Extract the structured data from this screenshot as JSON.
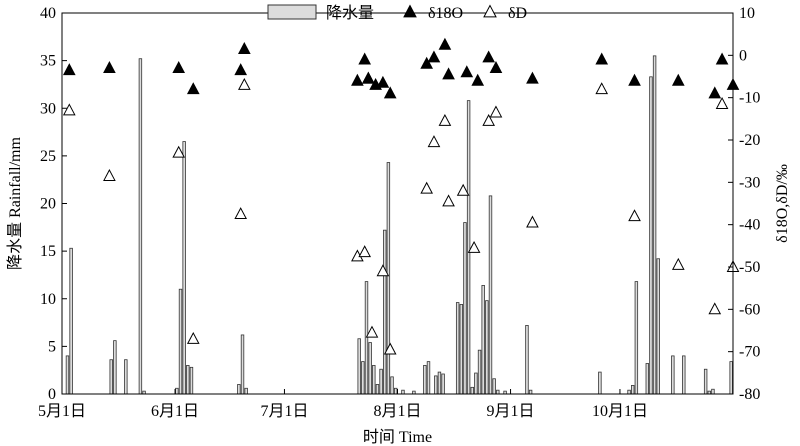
{
  "chart_data": {
    "type": "bar",
    "xlabel": "时间 Time",
    "ylabel_left": "降水量 Rainfall/mm",
    "ylabel_right": "δ18O,δD/‰",
    "left_axis": {
      "ylim": [
        0,
        40
      ],
      "ticks": [
        0,
        5,
        10,
        15,
        20,
        25,
        30,
        35,
        40
      ]
    },
    "right_axis": {
      "ylim": [
        -80,
        10
      ],
      "ticks": [
        -80,
        -70,
        -60,
        -50,
        -40,
        -30,
        -20,
        -10,
        0,
        10
      ]
    },
    "x_axis": {
      "xlim": [
        0,
        184
      ],
      "ticks": [
        {
          "day": 0,
          "label": "5月1日"
        },
        {
          "day": 31,
          "label": "6月1日"
        },
        {
          "day": 61,
          "label": "7月1日"
        },
        {
          "day": 92,
          "label": "8月1日"
        },
        {
          "day": 123,
          "label": "9月1日"
        },
        {
          "day": 153,
          "label": "10月1日"
        }
      ]
    },
    "legend": {
      "position": "top-center",
      "entries": [
        {
          "name": "降水量",
          "marker": "bar"
        },
        {
          "name": "δ18O",
          "marker": "filled-triangle"
        },
        {
          "name": "δD",
          "marker": "open-triangle"
        }
      ]
    },
    "colors": {
      "bar_fill": "#dcdcdc",
      "bar_stroke": "#333333",
      "o18_marker": "#000000",
      "d_marker": "#ffffff"
    },
    "series": [
      {
        "name": "降水量",
        "axis": "left",
        "type": "bar",
        "points": [
          {
            "x": 1,
            "y": 4.0
          },
          {
            "x": 2,
            "y": 15.3
          },
          {
            "x": 13,
            "y": 3.6
          },
          {
            "x": 14,
            "y": 5.6
          },
          {
            "x": 17,
            "y": 3.6
          },
          {
            "x": 21,
            "y": 35.2
          },
          {
            "x": 22,
            "y": 0.3
          },
          {
            "x": 31,
            "y": 0.6
          },
          {
            "x": 32,
            "y": 11.0
          },
          {
            "x": 33,
            "y": 26.5
          },
          {
            "x": 34,
            "y": 3.0
          },
          {
            "x": 35,
            "y": 2.8
          },
          {
            "x": 48,
            "y": 1.0
          },
          {
            "x": 49,
            "y": 6.2
          },
          {
            "x": 50,
            "y": 0.6
          },
          {
            "x": 81,
            "y": 5.8
          },
          {
            "x": 82,
            "y": 3.4
          },
          {
            "x": 83,
            "y": 11.8
          },
          {
            "x": 84,
            "y": 5.4
          },
          {
            "x": 85,
            "y": 3.0
          },
          {
            "x": 86,
            "y": 1.0
          },
          {
            "x": 87,
            "y": 2.6
          },
          {
            "x": 88,
            "y": 17.2
          },
          {
            "x": 89,
            "y": 24.3
          },
          {
            "x": 90,
            "y": 1.8
          },
          {
            "x": 91,
            "y": 0.6
          },
          {
            "x": 93,
            "y": 0.4
          },
          {
            "x": 96,
            "y": 0.3
          },
          {
            "x": 99,
            "y": 3.0
          },
          {
            "x": 100,
            "y": 3.4
          },
          {
            "x": 102,
            "y": 1.9
          },
          {
            "x": 103,
            "y": 2.3
          },
          {
            "x": 104,
            "y": 2.1
          },
          {
            "x": 108,
            "y": 9.6
          },
          {
            "x": 109,
            "y": 9.4
          },
          {
            "x": 110,
            "y": 18.0
          },
          {
            "x": 111,
            "y": 30.8
          },
          {
            "x": 112,
            "y": 0.7
          },
          {
            "x": 113,
            "y": 2.2
          },
          {
            "x": 114,
            "y": 4.6
          },
          {
            "x": 115,
            "y": 11.4
          },
          {
            "x": 116,
            "y": 9.8
          },
          {
            "x": 117,
            "y": 20.8
          },
          {
            "x": 118,
            "y": 1.6
          },
          {
            "x": 119,
            "y": 0.4
          },
          {
            "x": 121,
            "y": 0.3
          },
          {
            "x": 127,
            "y": 7.2
          },
          {
            "x": 128,
            "y": 0.4
          },
          {
            "x": 147,
            "y": 2.3
          },
          {
            "x": 155,
            "y": 0.4
          },
          {
            "x": 156,
            "y": 0.9
          },
          {
            "x": 157,
            "y": 11.8
          },
          {
            "x": 160,
            "y": 3.2
          },
          {
            "x": 161,
            "y": 33.3
          },
          {
            "x": 162,
            "y": 35.5
          },
          {
            "x": 163,
            "y": 14.2
          },
          {
            "x": 167,
            "y": 4.0
          },
          {
            "x": 170,
            "y": 4.0
          },
          {
            "x": 176,
            "y": 2.6
          },
          {
            "x": 177,
            "y": 0.3
          },
          {
            "x": 178,
            "y": 0.5
          },
          {
            "x": 183,
            "y": 3.4
          }
        ]
      },
      {
        "name": "δ18O",
        "axis": "right",
        "type": "scatter",
        "points": [
          {
            "x": 2,
            "y": -3.5
          },
          {
            "x": 13,
            "y": -3.0
          },
          {
            "x": 32,
            "y": -3.0
          },
          {
            "x": 36,
            "y": -8.0
          },
          {
            "x": 49,
            "y": -3.5
          },
          {
            "x": 50,
            "y": 1.5
          },
          {
            "x": 81,
            "y": -6.0
          },
          {
            "x": 83,
            "y": -1.0
          },
          {
            "x": 84,
            "y": -5.5
          },
          {
            "x": 86,
            "y": -7.0
          },
          {
            "x": 88,
            "y": -6.5
          },
          {
            "x": 90,
            "y": -9.0
          },
          {
            "x": 100,
            "y": -2.0
          },
          {
            "x": 102,
            "y": -0.5
          },
          {
            "x": 105,
            "y": 2.5
          },
          {
            "x": 106,
            "y": -4.5
          },
          {
            "x": 111,
            "y": -4.0
          },
          {
            "x": 114,
            "y": -6.0
          },
          {
            "x": 117,
            "y": -0.5
          },
          {
            "x": 119,
            "y": -3.0
          },
          {
            "x": 129,
            "y": -5.5
          },
          {
            "x": 148,
            "y": -1.0
          },
          {
            "x": 157,
            "y": -6.0
          },
          {
            "x": 169,
            "y": -6.0
          },
          {
            "x": 179,
            "y": -9.0
          },
          {
            "x": 181,
            "y": -1.0
          },
          {
            "x": 184,
            "y": -7.0
          }
        ]
      },
      {
        "name": "δD",
        "axis": "right",
        "type": "scatter",
        "points": [
          {
            "x": 2,
            "y": -13.0
          },
          {
            "x": 13,
            "y": -28.5
          },
          {
            "x": 32,
            "y": -23.0
          },
          {
            "x": 36,
            "y": -67.0
          },
          {
            "x": 49,
            "y": -37.5
          },
          {
            "x": 50,
            "y": -7.0
          },
          {
            "x": 81,
            "y": -47.5
          },
          {
            "x": 83,
            "y": -46.5
          },
          {
            "x": 84,
            "y": -5.5
          },
          {
            "x": 85,
            "y": -65.5
          },
          {
            "x": 88,
            "y": -51.0
          },
          {
            "x": 90,
            "y": -69.5
          },
          {
            "x": 100,
            "y": -31.5
          },
          {
            "x": 102,
            "y": -20.5
          },
          {
            "x": 105,
            "y": -15.5
          },
          {
            "x": 106,
            "y": -34.5
          },
          {
            "x": 110,
            "y": -32.0
          },
          {
            "x": 113,
            "y": -45.5
          },
          {
            "x": 117,
            "y": -15.5
          },
          {
            "x": 119,
            "y": -13.5
          },
          {
            "x": 129,
            "y": -39.5
          },
          {
            "x": 148,
            "y": -8.0
          },
          {
            "x": 157,
            "y": -38.0
          },
          {
            "x": 169,
            "y": -49.5
          },
          {
            "x": 179,
            "y": -60.0
          },
          {
            "x": 181,
            "y": -11.5
          },
          {
            "x": 184,
            "y": -50.0
          }
        ]
      }
    ]
  }
}
